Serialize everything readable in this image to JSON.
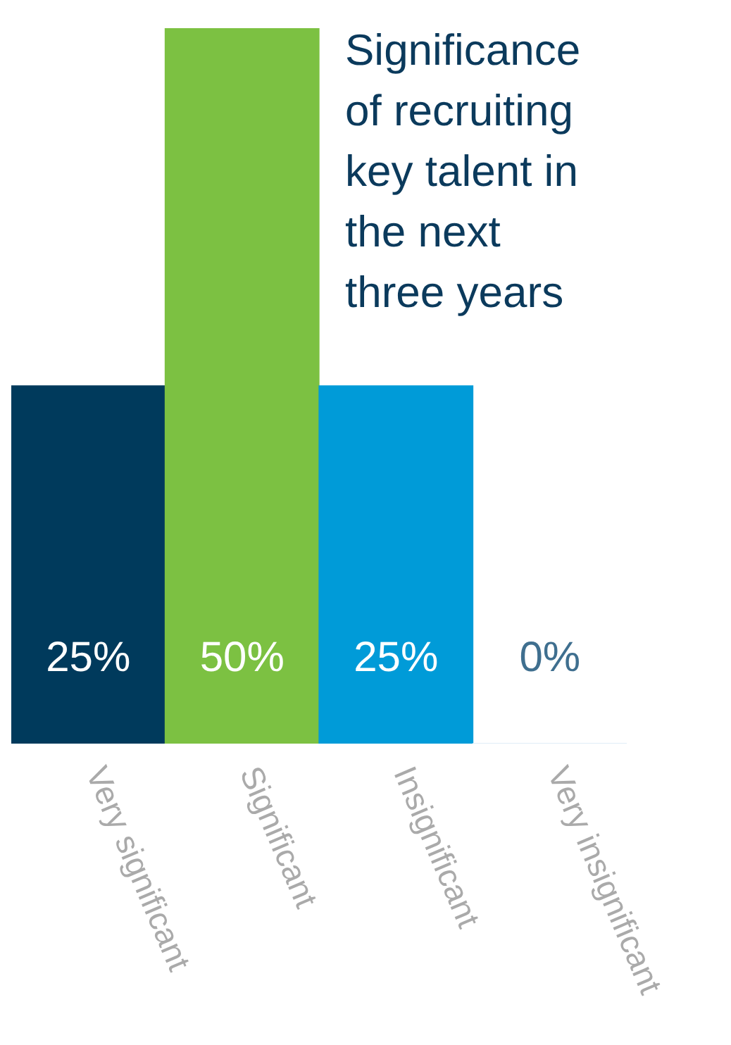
{
  "chart_data": {
    "type": "bar",
    "title": "Significance of recruiting key talent in the next three years",
    "categories": [
      "Very significant",
      "Significant",
      "Insignificant",
      "Very insignificant"
    ],
    "values": [
      25,
      50,
      25,
      0
    ],
    "colors": [
      "#003a5c",
      "#7cc142",
      "#009bd8",
      "#d6e9f5"
    ],
    "value_labels": [
      "25%",
      "50%",
      "25%",
      "0%"
    ]
  }
}
